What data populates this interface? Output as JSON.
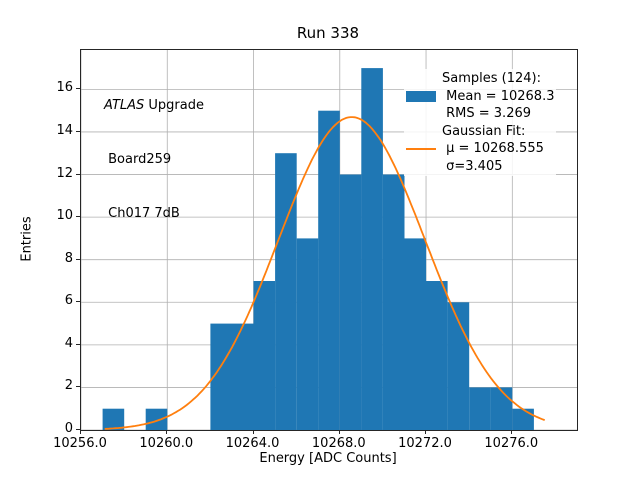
{
  "figure": {
    "title": "Run 338",
    "xlabel": "Energy [ADC Counts]",
    "ylabel": "Entries"
  },
  "annotation": {
    "line1_italic": "ATLAS",
    "line1_rest": " Upgrade",
    "line2": " Board259",
    "line3": " Ch017 7dB"
  },
  "legend": {
    "rows": [
      {
        "swatch": "none",
        "label": "Samples (124):"
      },
      {
        "swatch": "hist",
        "label": " Mean = 10268.3"
      },
      {
        "swatch": "none",
        "label": " RMS = 3.269"
      },
      {
        "swatch": "none",
        "label": "Gaussian Fit:"
      },
      {
        "swatch": "line",
        "label": " μ = 10268.555"
      },
      {
        "swatch": "none",
        "label": " σ=3.405"
      }
    ]
  },
  "chart_data": {
    "type": "bar",
    "subtype": "histogram-with-gaussian-fit",
    "title": "Run 338",
    "xlabel": "Energy [ADC Counts]",
    "ylabel": "Entries",
    "xlim": [
      10256.0,
      10279.0
    ],
    "ylim": [
      0,
      17.85
    ],
    "grid": true,
    "xticks": [
      10256.0,
      10260.0,
      10264.0,
      10268.0,
      10272.0,
      10276.0
    ],
    "xtick_labels": [
      "10256.0",
      "10260.0",
      "10264.0",
      "10268.0",
      "10272.0",
      "10276.0"
    ],
    "yticks": [
      0,
      2,
      4,
      6,
      8,
      10,
      12,
      14,
      16
    ],
    "ytick_labels": [
      "0",
      "2",
      "4",
      "6",
      "8",
      "10",
      "12",
      "14",
      "16"
    ],
    "bin_edges": [
      10257,
      10258,
      10259,
      10260,
      10261,
      10262,
      10263,
      10264,
      10265,
      10266,
      10267,
      10268,
      10269,
      10270,
      10271,
      10272,
      10273,
      10274,
      10275,
      10276,
      10277
    ],
    "counts": [
      1,
      0,
      1,
      0,
      0,
      5,
      5,
      7,
      13,
      9,
      15,
      12,
      17,
      12,
      9,
      7,
      6,
      2,
      2,
      1
    ],
    "n_samples": 124,
    "mean": 10268.3,
    "rms": 3.269,
    "gaussian": {
      "mu": 10268.555,
      "sigma": 3.405,
      "amplitude": 14.7,
      "x_range": [
        10257.1,
        10277.6
      ]
    },
    "colors": {
      "hist": "#1f77b4",
      "fit": "#ff7f0e",
      "grid": "#b0b0b0",
      "spine": "#262626"
    },
    "legend_position": "upper right"
  }
}
